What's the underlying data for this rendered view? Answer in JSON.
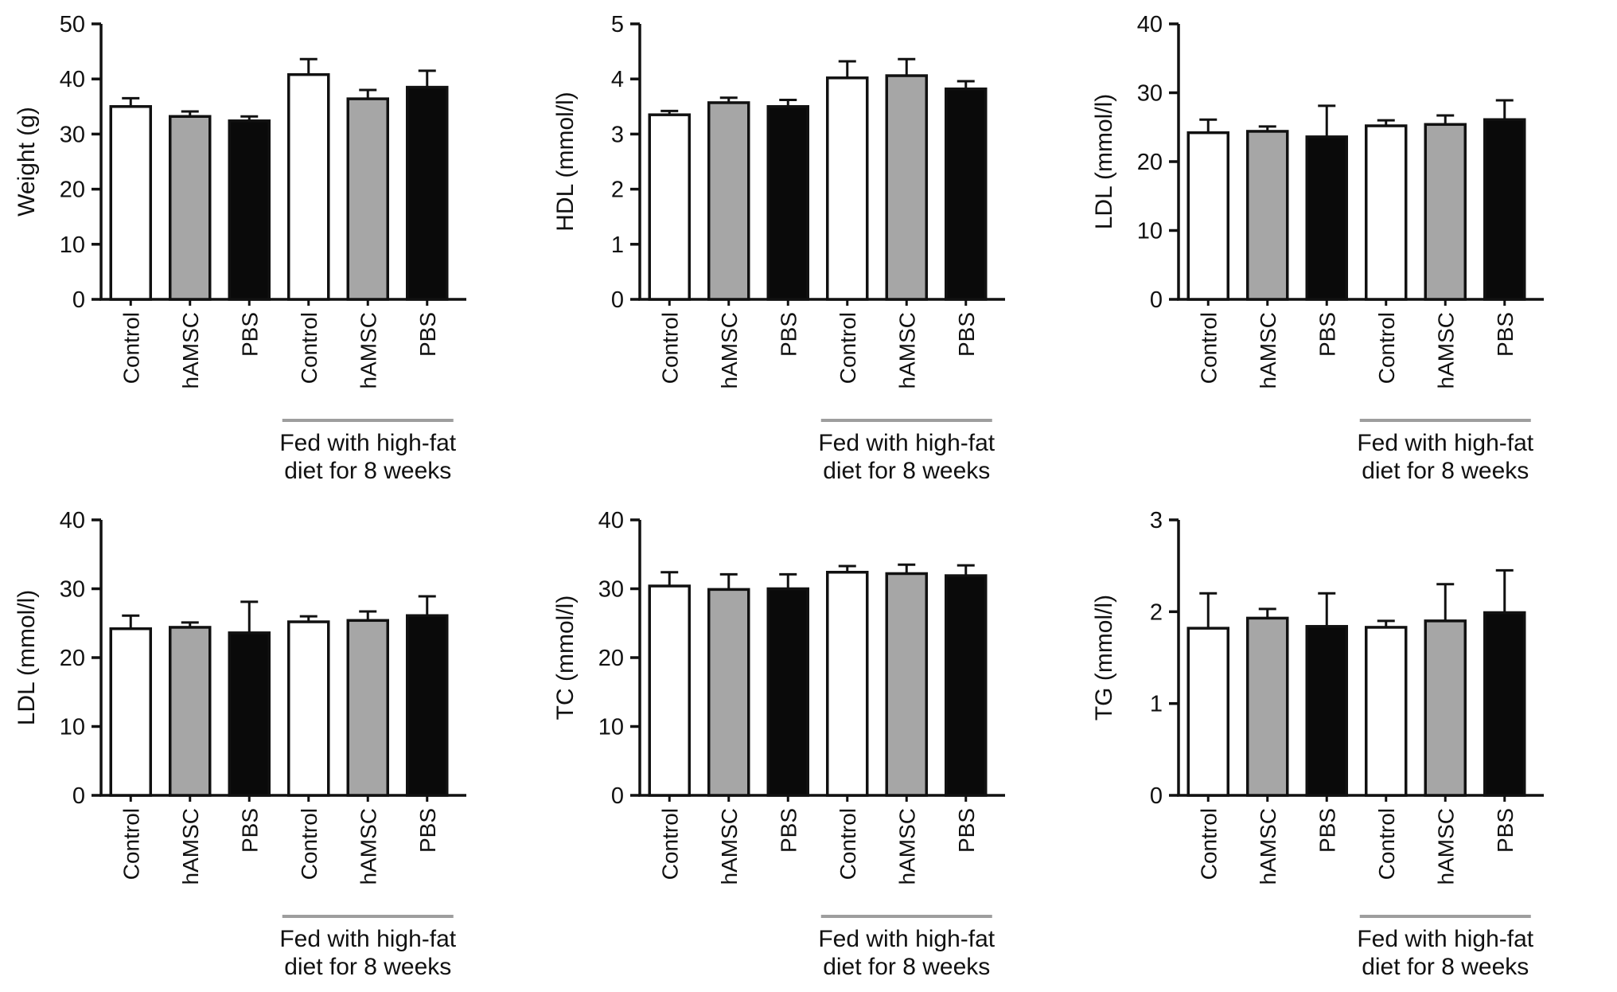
{
  "figure": {
    "description": "Six-panel bar figure comparing metabolic measures between normal-diet and high-fat-diet groups",
    "group_label_lines": [
      "Fed with high-fat",
      "diet for 8 weeks"
    ]
  },
  "style": {
    "bar_fill_colors": [
      "#ffffff",
      "#a6a6a6",
      "#0a0a0a",
      "#ffffff",
      "#a6a6a6",
      "#0a0a0a"
    ],
    "axis_color": "#111111",
    "group_line_color": "#9e9e9e"
  },
  "chart_data": [
    {
      "type": "bar",
      "title": "",
      "xlabel": "",
      "ylabel": "Weight (g)",
      "ylim": [
        0,
        50
      ],
      "yticks": [
        0,
        10,
        20,
        30,
        40,
        50
      ],
      "categories": [
        "Control",
        "hAMSC",
        "PBS",
        "Control",
        "hAMSC",
        "PBS"
      ],
      "values": [
        35,
        33.2,
        32.4,
        40.8,
        36.4,
        38.5
      ],
      "errors": [
        1.5,
        0.9,
        0.8,
        2.8,
        1.6,
        3.0
      ],
      "grid": false,
      "legend": null,
      "group_annotation": {
        "bars": [
          3,
          5
        ],
        "label_lines": [
          "Fed with high-fat",
          "diet for 8 weeks"
        ]
      }
    },
    {
      "type": "bar",
      "title": "",
      "xlabel": "",
      "ylabel": "HDL (mmol/l)",
      "ylim": [
        0,
        5
      ],
      "yticks": [
        0,
        1,
        2,
        3,
        4,
        5
      ],
      "categories": [
        "Control",
        "hAMSC",
        "PBS",
        "Control",
        "hAMSC",
        "PBS"
      ],
      "values": [
        3.35,
        3.57,
        3.5,
        4.02,
        4.06,
        3.82
      ],
      "errors": [
        0.07,
        0.09,
        0.12,
        0.3,
        0.3,
        0.14
      ],
      "grid": false,
      "legend": null,
      "group_annotation": {
        "bars": [
          3,
          5
        ],
        "label_lines": [
          "Fed with high-fat",
          "diet for 8 weeks"
        ]
      }
    },
    {
      "type": "bar",
      "title": "",
      "xlabel": "",
      "ylabel": "LDL (mmol/l)",
      "ylim": [
        0,
        40
      ],
      "yticks": [
        0,
        10,
        20,
        30,
        40
      ],
      "categories": [
        "Control",
        "hAMSC",
        "PBS",
        "Control",
        "hAMSC",
        "PBS"
      ],
      "values": [
        24.2,
        24.4,
        23.6,
        25.2,
        25.4,
        26.1
      ],
      "errors": [
        1.9,
        0.7,
        4.5,
        0.8,
        1.3,
        2.8
      ],
      "grid": false,
      "legend": null,
      "group_annotation": {
        "bars": [
          3,
          5
        ],
        "label_lines": [
          "Fed with high-fat",
          "diet for 8 weeks"
        ]
      }
    },
    {
      "type": "bar",
      "title": "",
      "xlabel": "",
      "ylabel": "LDL (mmol/l)",
      "ylim": [
        0,
        40
      ],
      "yticks": [
        0,
        10,
        20,
        30,
        40
      ],
      "categories": [
        "Control",
        "hAMSC",
        "PBS",
        "Control",
        "hAMSC",
        "PBS"
      ],
      "values": [
        24.2,
        24.4,
        23.6,
        25.2,
        25.4,
        26.1
      ],
      "errors": [
        1.9,
        0.7,
        4.5,
        0.8,
        1.3,
        2.8
      ],
      "grid": false,
      "legend": null,
      "group_annotation": {
        "bars": [
          3,
          5
        ],
        "label_lines": [
          "Fed with high-fat",
          "diet for 8 weeks"
        ]
      }
    },
    {
      "type": "bar",
      "title": "",
      "xlabel": "",
      "ylabel": "TC (mmol/l)",
      "ylim": [
        0,
        40
      ],
      "yticks": [
        0,
        10,
        20,
        30,
        40
      ],
      "categories": [
        "Control",
        "hAMSC",
        "PBS",
        "Control",
        "hAMSC",
        "PBS"
      ],
      "values": [
        30.4,
        29.9,
        30.0,
        32.4,
        32.2,
        31.9
      ],
      "errors": [
        2.0,
        2.2,
        2.1,
        0.9,
        1.3,
        1.5
      ],
      "grid": false,
      "legend": null,
      "group_annotation": {
        "bars": [
          3,
          5
        ],
        "label_lines": [
          "Fed with high-fat",
          "diet for 8 weeks"
        ]
      }
    },
    {
      "type": "bar",
      "title": "",
      "xlabel": "",
      "ylabel": "TG (mmol/l)",
      "ylim": [
        0,
        3
      ],
      "yticks": [
        0,
        1,
        2,
        3
      ],
      "categories": [
        "Control",
        "hAMSC",
        "PBS",
        "Control",
        "hAMSC",
        "PBS"
      ],
      "values": [
        1.82,
        1.93,
        1.84,
        1.83,
        1.9,
        1.99
      ],
      "errors": [
        0.38,
        0.1,
        0.36,
        0.07,
        0.4,
        0.46
      ],
      "grid": false,
      "legend": null,
      "group_annotation": {
        "bars": [
          3,
          5
        ],
        "label_lines": [
          "Fed with high-fat",
          "diet for 8 weeks"
        ]
      }
    }
  ]
}
